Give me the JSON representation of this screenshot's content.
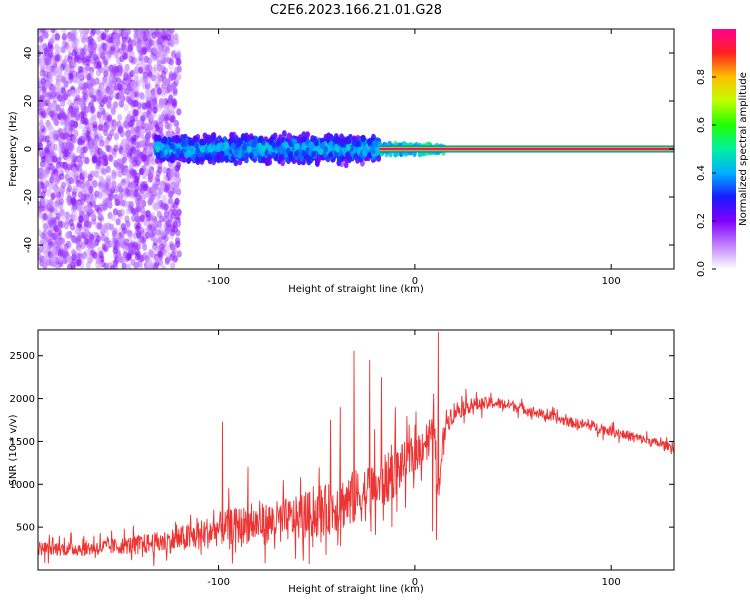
{
  "figure": {
    "title": "C2E6.2023.166.21.01.G28"
  },
  "chart_data": [
    {
      "type": "heatmap",
      "xlabel": "Height of straight line (km)",
      "ylabel": "Frequency (Hz)",
      "xlim": [
        -192,
        132
      ],
      "ylim": [
        -50,
        50
      ],
      "xticks": [
        -100,
        0,
        100
      ],
      "yticks": [
        -40,
        -20,
        0,
        20,
        40
      ],
      "colorbar": {
        "label": "Normalized spectral amplitude",
        "range": [
          0,
          1
        ],
        "ticks": [
          0.0,
          0.2,
          0.4,
          0.6,
          0.8
        ],
        "colormap": [
          "#ffffff",
          "#c080ff",
          "#8000ff",
          "#1a1aff",
          "#00b0ff",
          "#00f0a0",
          "#20ff00",
          "#c0ff00",
          "#ffc000",
          "#ff2020",
          "#ff0090"
        ]
      },
      "regions": [
        {
          "x_range": [
            -192,
            -120
          ],
          "freq_range": [
            -50,
            50
          ],
          "amplitude": 0.05,
          "pattern": "scattered noise"
        },
        {
          "x_range": [
            -132,
            -18
          ],
          "freq_range": [
            -7,
            7
          ],
          "amplitude": 0.25,
          "pattern": "broadened signal"
        },
        {
          "x_range": [
            -18,
            15
          ],
          "freq_range": [
            -3,
            3
          ],
          "amplitude": 0.35,
          "pattern": "transition"
        },
        {
          "x_range": [
            -18,
            132
          ],
          "freq_range": [
            -1.5,
            1.5
          ],
          "amplitude": 0.95,
          "pattern": "narrow carrier line"
        }
      ]
    },
    {
      "type": "line",
      "xlabel": "Height of straight line (km)",
      "ylabel": "SNR (10 * v/v)",
      "xlim": [
        -192,
        132
      ],
      "ylim": [
        0,
        2800
      ],
      "xticks": [
        -100,
        0,
        100
      ],
      "yticks": [
        500,
        1000,
        1500,
        2000,
        2500
      ],
      "color": "#ee3333",
      "series": [
        {
          "name": "",
          "x": [
            -192,
            -170,
            -150,
            -130,
            -110,
            -100,
            -90,
            -75,
            -60,
            -45,
            -35,
            -25,
            -20,
            -12,
            -5,
            0,
            5,
            10,
            12,
            15,
            20,
            25,
            30,
            40,
            50,
            60,
            70,
            80,
            90,
            100,
            110,
            120,
            132
          ],
          "y": [
            250,
            250,
            280,
            320,
            400,
            480,
            520,
            550,
            600,
            700,
            800,
            900,
            950,
            1100,
            1250,
            1350,
            1500,
            1650,
            800,
            1700,
            1850,
            1900,
            1930,
            1950,
            1920,
            1850,
            1780,
            1720,
            1680,
            1620,
            1560,
            1500,
            1430
          ],
          "noise": [
            80,
            90,
            100,
            130,
            180,
            200,
            220,
            240,
            260,
            300,
            320,
            330,
            330,
            300,
            250,
            230,
            220,
            200,
            150,
            150,
            120,
            100,
            80,
            70,
            65,
            60,
            60,
            60,
            60,
            60,
            60,
            55,
            50
          ]
        }
      ],
      "spikes": [
        {
          "x": -98,
          "y": 1730
        },
        {
          "x": -85,
          "y": 1200
        },
        {
          "x": -43,
          "y": 1750
        },
        {
          "x": -38,
          "y": 1900
        },
        {
          "x": -31,
          "y": 2560
        },
        {
          "x": -23,
          "y": 2450
        },
        {
          "x": -17,
          "y": 2250
        },
        {
          "x": -10,
          "y": 1900
        },
        {
          "x": 11,
          "y": 2400
        },
        {
          "x": 12,
          "y": 2780
        }
      ],
      "dips": [
        {
          "x": 9,
          "y": 450
        },
        {
          "x": 11,
          "y": 350
        }
      ]
    }
  ]
}
